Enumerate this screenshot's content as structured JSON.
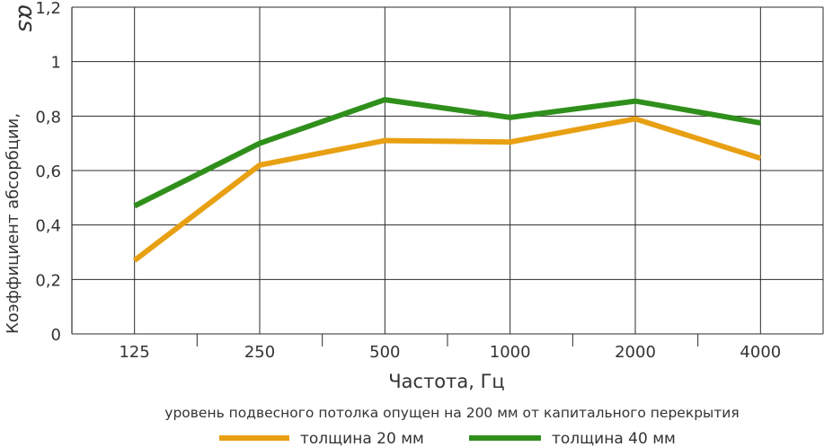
{
  "chart_data": {
    "type": "line",
    "categories": [
      "125",
      "250",
      "500",
      "1000",
      "2000",
      "4000"
    ],
    "series": [
      {
        "name": "толщина 20 мм",
        "color": "#E8A013",
        "values": [
          0.27,
          0.62,
          0.71,
          0.705,
          0.79,
          0.645
        ]
      },
      {
        "name": "толщина 40 мм",
        "color": "#2F8F1B",
        "values": [
          0.47,
          0.7,
          0.86,
          0.795,
          0.855,
          0.775
        ]
      }
    ],
    "y_ticks": [
      "0",
      "0,2",
      "0,4",
      "0,6",
      "0,8",
      "1",
      "1,2"
    ],
    "ylim": [
      0,
      1.2
    ],
    "xlabel": "Частота, Гц",
    "ylabel": "Коэффициент абсорбции,",
    "ylabel_symbol": "αs",
    "note": "уровень подвесного потолка опущен на 200 мм от капитального перекрытия",
    "grid": true,
    "legend_position": "bottom"
  }
}
